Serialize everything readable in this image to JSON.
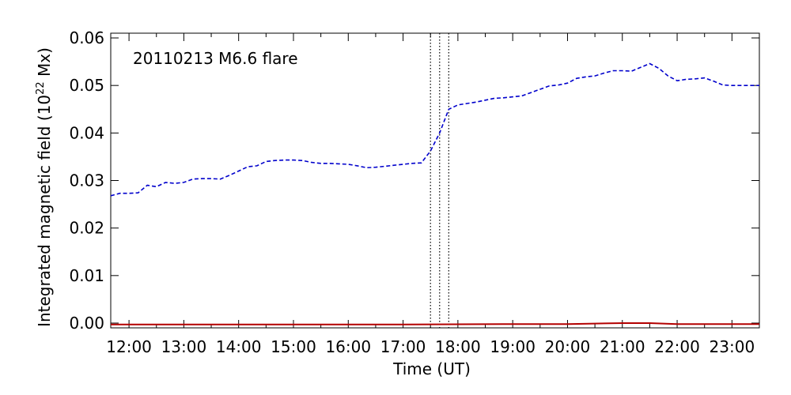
{
  "chart_data": {
    "type": "line",
    "annotation": "20110213 M6.6 flare",
    "xlabel": "Time (UT)",
    "ylabel": "Integrated magnetic field (10",
    "ylabel_sup": "22",
    "ylabel_tail": " Mx)",
    "xlim": [
      "11:40",
      "23:30"
    ],
    "ylim": [
      -0.001,
      0.061
    ],
    "x_ticks": [
      "12:00",
      "13:00",
      "14:00",
      "15:00",
      "16:00",
      "17:00",
      "18:00",
      "19:00",
      "20:00",
      "21:00",
      "22:00",
      "23:00"
    ],
    "y_ticks": [
      "0.00",
      "0.01",
      "0.02",
      "0.03",
      "0.04",
      "0.05",
      "0.06"
    ],
    "vertical_markers": [
      "17:30",
      "17:40",
      "17:50"
    ],
    "grid": false,
    "colors": {
      "series_blue": "#0000cc",
      "series_red": "#b30000",
      "markers": "#000000"
    },
    "series": [
      {
        "line_style": "dashed",
        "color": "#0000cc",
        "x": [
          "11:40",
          "11:50",
          "12:00",
          "12:10",
          "12:20",
          "12:30",
          "12:40",
          "12:50",
          "13:00",
          "13:10",
          "13:20",
          "13:30",
          "13:40",
          "13:50",
          "14:00",
          "14:10",
          "14:20",
          "14:30",
          "14:40",
          "14:50",
          "15:00",
          "15:10",
          "15:20",
          "15:30",
          "15:40",
          "15:50",
          "16:00",
          "16:10",
          "16:20",
          "16:30",
          "16:40",
          "16:50",
          "17:00",
          "17:10",
          "17:20",
          "17:30",
          "17:40",
          "17:50",
          "18:00",
          "18:10",
          "18:20",
          "18:30",
          "18:40",
          "18:50",
          "19:00",
          "19:10",
          "19:20",
          "19:30",
          "19:40",
          "19:50",
          "20:00",
          "20:10",
          "20:20",
          "20:30",
          "20:40",
          "20:50",
          "21:00",
          "21:10",
          "21:20",
          "21:30",
          "21:40",
          "21:50",
          "22:00",
          "22:10",
          "22:20",
          "22:30",
          "22:40",
          "22:50",
          "23:00",
          "23:10",
          "23:20",
          "23:30"
        ],
        "y": [
          0.0268,
          0.0273,
          0.0273,
          0.0274,
          0.029,
          0.0287,
          0.0296,
          0.0294,
          0.0296,
          0.0303,
          0.0304,
          0.0304,
          0.0303,
          0.0311,
          0.032,
          0.0329,
          0.0331,
          0.034,
          0.0342,
          0.0343,
          0.0343,
          0.0342,
          0.0338,
          0.0336,
          0.0336,
          0.0335,
          0.0334,
          0.0331,
          0.0327,
          0.0328,
          0.033,
          0.0332,
          0.0334,
          0.0336,
          0.0337,
          0.0362,
          0.04,
          0.045,
          0.0459,
          0.0462,
          0.0465,
          0.0469,
          0.0473,
          0.0474,
          0.0476,
          0.0478,
          0.0485,
          0.0492,
          0.0499,
          0.0501,
          0.0505,
          0.0515,
          0.0518,
          0.052,
          0.0526,
          0.0531,
          0.0531,
          0.053,
          0.0538,
          0.0546,
          0.0536,
          0.052,
          0.051,
          0.0513,
          0.0514,
          0.0516,
          0.0509,
          0.0501,
          0.05,
          0.05,
          0.05,
          0.05
        ]
      },
      {
        "line_style": "solid",
        "color": "#b30000",
        "x": [
          "11:40",
          "17:00",
          "19:00",
          "20:00",
          "21:00",
          "21:30",
          "22:00",
          "23:30"
        ],
        "y": [
          -0.0003,
          -0.0003,
          -0.0002,
          -0.0002,
          0.0,
          0.0,
          -0.0002,
          -0.0002
        ]
      }
    ]
  }
}
